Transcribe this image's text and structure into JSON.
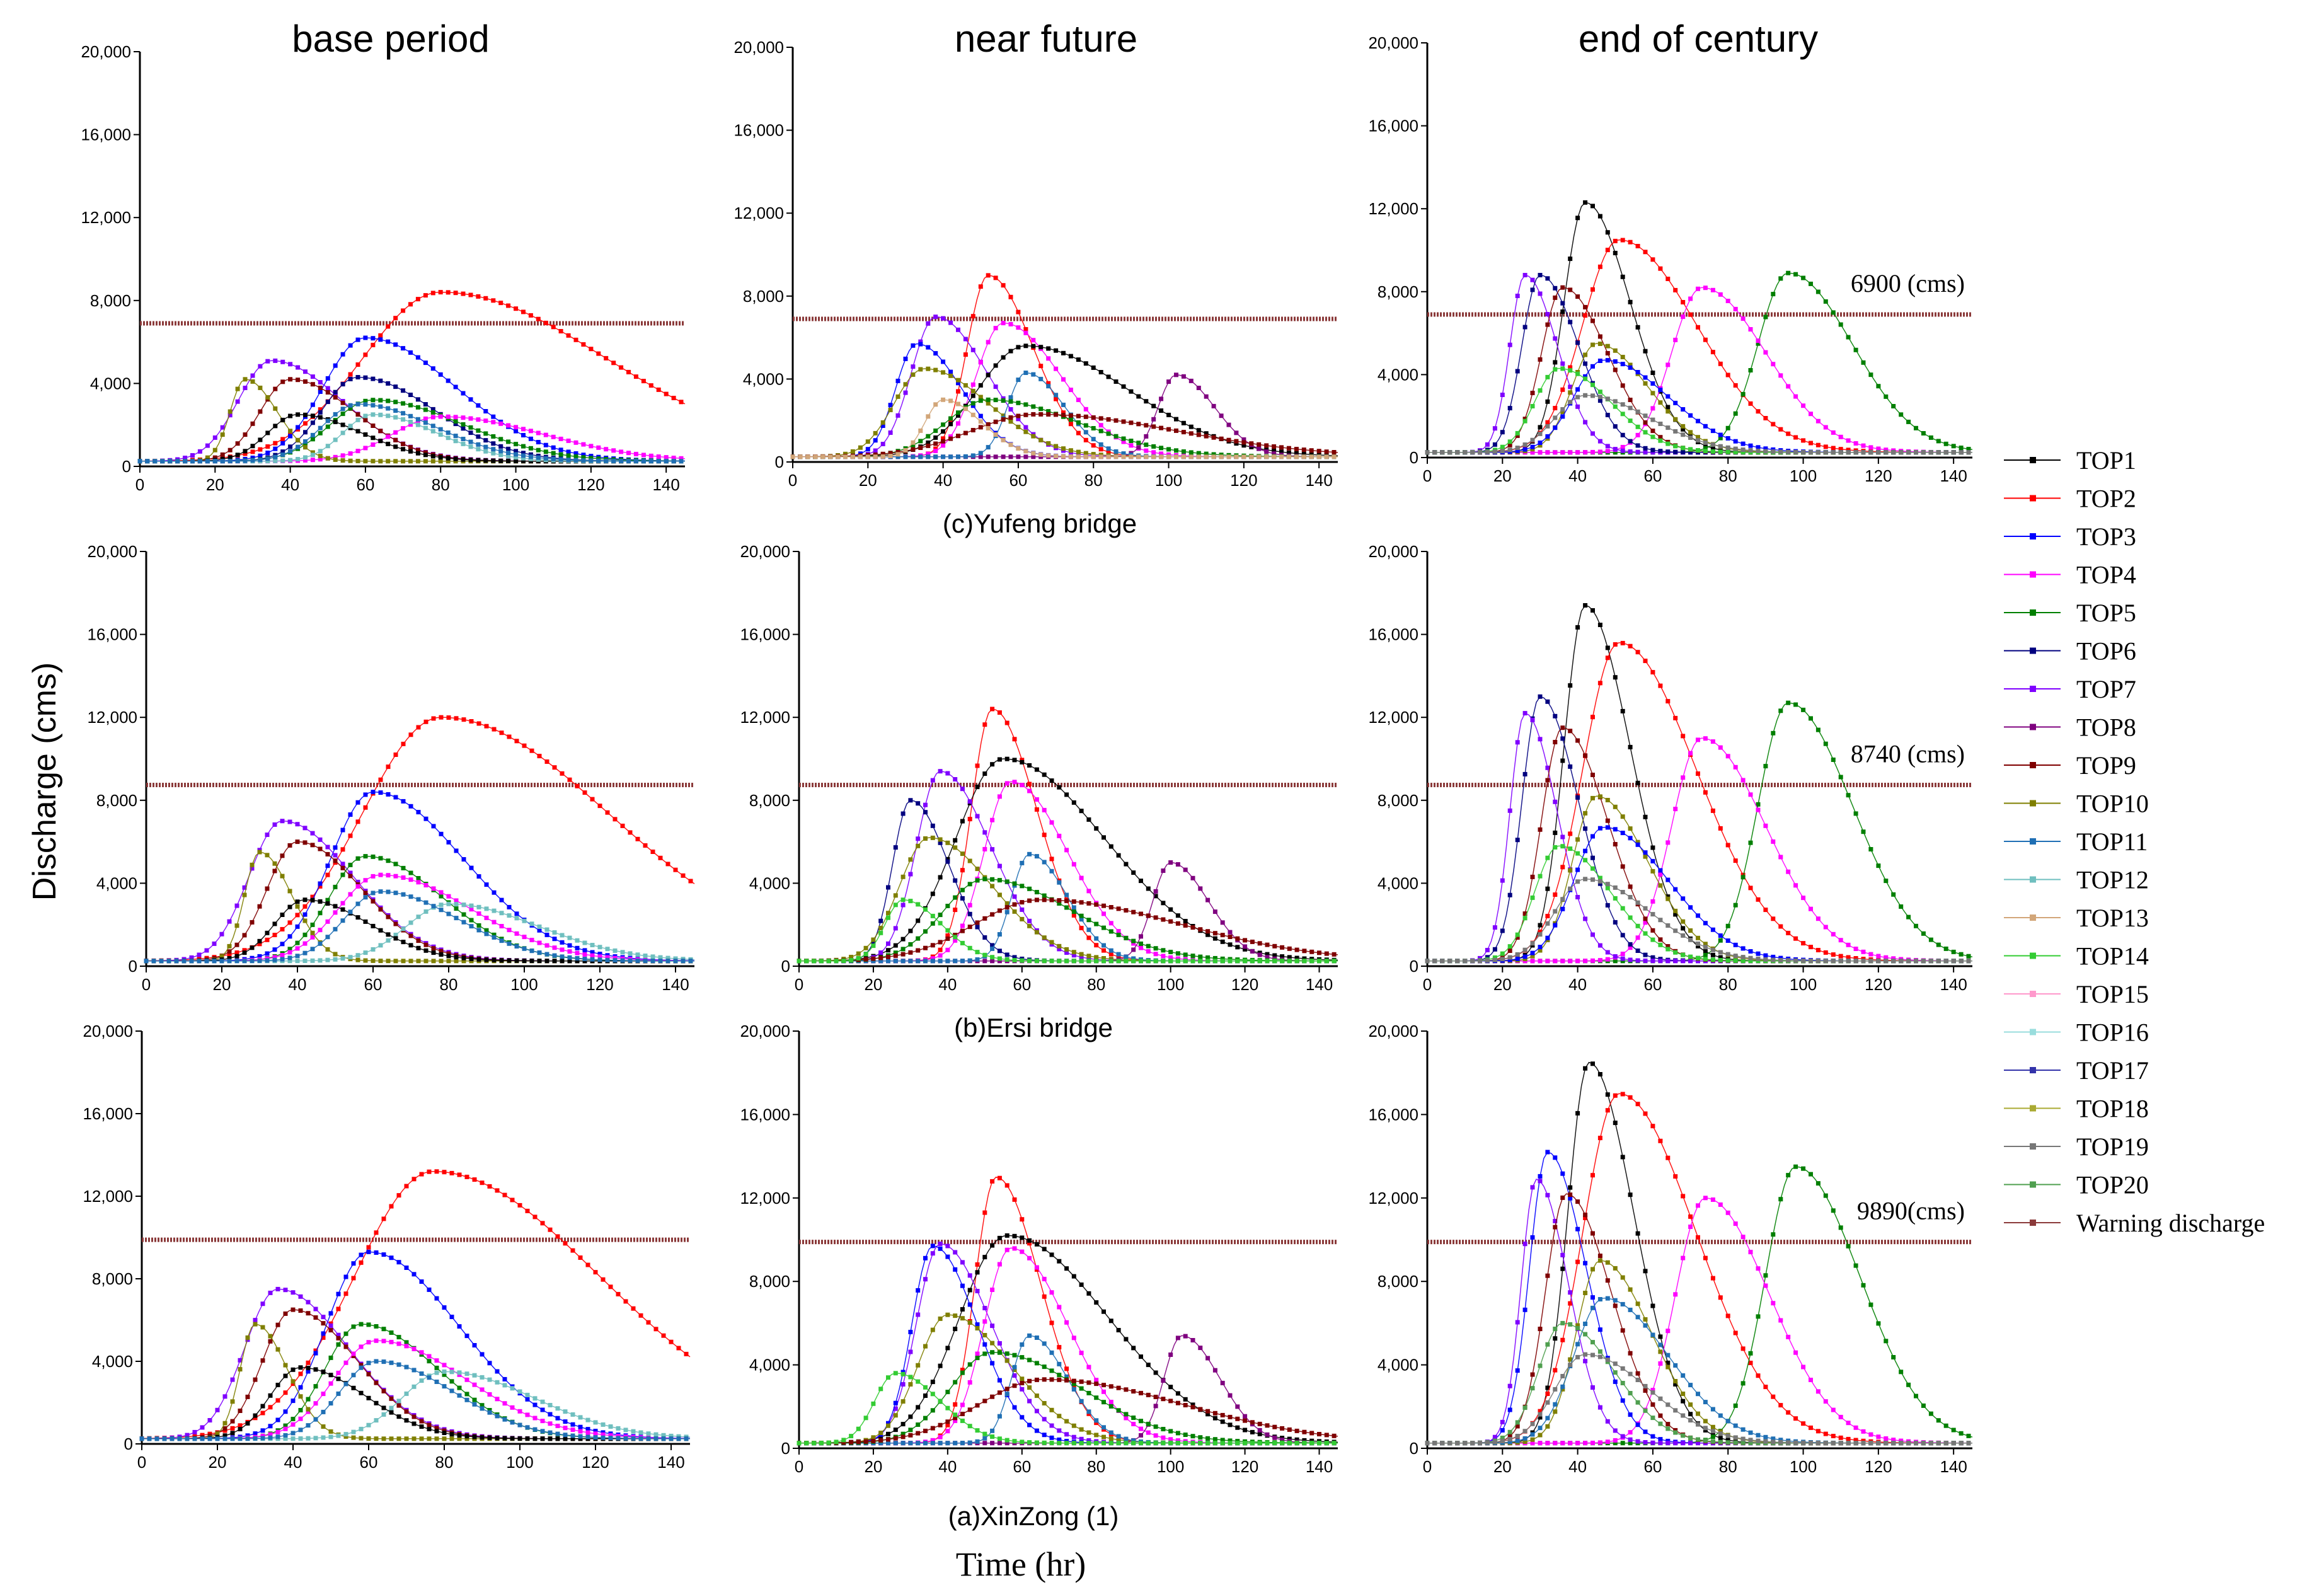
{
  "figure": {
    "column_titles": [
      "base period",
      "near future",
      "end of century"
    ],
    "row_captions": [
      "(c)Yufeng bridge",
      "(b)Ersi bridge",
      "(a)XinZong (1)"
    ],
    "ylabel": "Discharge (cms)",
    "xlabel": "Time (hr)"
  },
  "legend": {
    "items": [
      {
        "label": "TOP1",
        "color": "#000000"
      },
      {
        "label": "TOP2",
        "color": "#ff0000"
      },
      {
        "label": "TOP3",
        "color": "#0000ff"
      },
      {
        "label": "TOP4",
        "color": "#ff00ff"
      },
      {
        "label": "TOP5",
        "color": "#007f00"
      },
      {
        "label": "TOP6",
        "color": "#00007f"
      },
      {
        "label": "TOP7",
        "color": "#7f00ff"
      },
      {
        "label": "TOP8",
        "color": "#7f007f"
      },
      {
        "label": "TOP9",
        "color": "#7f0000"
      },
      {
        "label": "TOP10",
        "color": "#7f7f00"
      },
      {
        "label": "TOP11",
        "color": "#1f6fb4"
      },
      {
        "label": "TOP12",
        "color": "#6fbfbf"
      },
      {
        "label": "TOP13",
        "color": "#d2a679"
      },
      {
        "label": "TOP14",
        "color": "#33cc33"
      },
      {
        "label": "TOP15",
        "color": "#ff99cc"
      },
      {
        "label": "TOP16",
        "color": "#99dddd"
      },
      {
        "label": "TOP17",
        "color": "#3333aa"
      },
      {
        "label": "TOP18",
        "color": "#aaaa33"
      },
      {
        "label": "TOP19",
        "color": "#777777"
      },
      {
        "label": "TOP20",
        "color": "#4f9f4f"
      },
      {
        "label": "Warning discharge",
        "color": "#8b3a3a"
      }
    ]
  },
  "chart_data": [
    {
      "type": "line",
      "row": 0,
      "col": 0,
      "station": "Yufeng bridge",
      "period": "base period",
      "warning": 6900,
      "warning_label": "",
      "xlim": [
        0,
        145
      ],
      "ylim": [
        0,
        20000
      ],
      "xticks": [
        "0",
        "20",
        "40",
        "60",
        "80",
        "100",
        "120",
        "140"
      ],
      "yticks": [
        "0",
        "4,000",
        "8,000",
        "12,000",
        "16,000",
        "20,000"
      ],
      "peaks": [
        {
          "s": 1,
          "t": 80,
          "q": 8400,
          "w": 26
        },
        {
          "s": 2,
          "t": 60,
          "q": 6200,
          "w": 14
        },
        {
          "s": 6,
          "t": 35,
          "q": 5100,
          "w": 11
        },
        {
          "s": 8,
          "t": 40,
          "q": 4200,
          "w": 10
        },
        {
          "s": 5,
          "t": 58,
          "q": 4300,
          "w": 12
        },
        {
          "s": 4,
          "t": 62,
          "q": 3200,
          "w": 14
        },
        {
          "s": 3,
          "t": 80,
          "q": 2400,
          "w": 16
        },
        {
          "s": 9,
          "t": 28,
          "q": 4200,
          "w": 5
        },
        {
          "s": 0,
          "t": 42,
          "q": 2500,
          "w": 10
        },
        {
          "s": 11,
          "t": 62,
          "q": 2500,
          "w": 10
        },
        {
          "s": 10,
          "t": 58,
          "q": 3000,
          "w": 12
        }
      ]
    },
    {
      "type": "line",
      "row": 0,
      "col": 1,
      "station": "Yufeng bridge",
      "period": "near future",
      "warning": 6900,
      "warning_label": "",
      "xlim": [
        0,
        145
      ],
      "ylim": [
        0,
        20000
      ],
      "xticks": [
        "0",
        "20",
        "40",
        "60",
        "80",
        "100",
        "120",
        "140"
      ],
      "yticks": [
        "0",
        "4,000",
        "8,000",
        "12,000",
        "16,000",
        "20,000"
      ],
      "peaks": [
        {
          "s": 1,
          "t": 52,
          "q": 9000,
          "w": 7
        },
        {
          "s": 6,
          "t": 38,
          "q": 7000,
          "w": 8
        },
        {
          "s": 3,
          "t": 56,
          "q": 6700,
          "w": 9
        },
        {
          "s": 0,
          "t": 62,
          "q": 5600,
          "w": 16
        },
        {
          "s": 2,
          "t": 33,
          "q": 5700,
          "w": 7
        },
        {
          "s": 9,
          "t": 35,
          "q": 4500,
          "w": 10
        },
        {
          "s": 7,
          "t": 102,
          "q": 4200,
          "w": 6
        },
        {
          "s": 10,
          "t": 62,
          "q": 4300,
          "w": 6
        },
        {
          "s": 4,
          "t": 52,
          "q": 3000,
          "w": 14
        },
        {
          "s": 8,
          "t": 65,
          "q": 2300,
          "w": 22
        },
        {
          "s": 12,
          "t": 40,
          "q": 3000,
          "w": 6
        }
      ]
    },
    {
      "type": "line",
      "row": 0,
      "col": 2,
      "station": "Yufeng bridge",
      "period": "end of century",
      "warning": 6900,
      "warning_label": "6900 (cms)",
      "xlim": [
        0,
        145
      ],
      "ylim": [
        0,
        20000
      ],
      "xticks": [
        "0",
        "20",
        "40",
        "60",
        "80",
        "100",
        "120",
        "140"
      ],
      "yticks": [
        "0",
        "4,000",
        "8,000",
        "12,000",
        "16,000",
        "20,000"
      ],
      "peaks": [
        {
          "s": 0,
          "t": 42,
          "q": 12300,
          "w": 7
        },
        {
          "s": 1,
          "t": 51,
          "q": 10500,
          "w": 12
        },
        {
          "s": 4,
          "t": 96,
          "q": 8900,
          "w": 10
        },
        {
          "s": 3,
          "t": 73,
          "q": 8200,
          "w": 10
        },
        {
          "s": 6,
          "t": 26,
          "q": 8800,
          "w": 5
        },
        {
          "s": 5,
          "t": 30,
          "q": 8800,
          "w": 6
        },
        {
          "s": 8,
          "t": 36,
          "q": 8200,
          "w": 7
        },
        {
          "s": 9,
          "t": 45,
          "q": 5500,
          "w": 8
        },
        {
          "s": 2,
          "t": 47,
          "q": 4700,
          "w": 10
        },
        {
          "s": 13,
          "t": 35,
          "q": 4300,
          "w": 8
        },
        {
          "s": 18,
          "t": 42,
          "q": 3000,
          "w": 10
        }
      ]
    },
    {
      "type": "line",
      "row": 1,
      "col": 0,
      "station": "Ersi bridge",
      "period": "base period",
      "warning": 8740,
      "warning_label": "",
      "xlim": [
        0,
        145
      ],
      "ylim": [
        0,
        20000
      ],
      "xticks": [
        "0",
        "20",
        "40",
        "60",
        "80",
        "100",
        "120",
        "140"
      ],
      "yticks": [
        "0",
        "4,000",
        "8,000",
        "12,000",
        "16,000",
        "20,000"
      ],
      "peaks": [
        {
          "s": 1,
          "t": 78,
          "q": 12000,
          "w": 26
        },
        {
          "s": 2,
          "t": 60,
          "q": 8400,
          "w": 14
        },
        {
          "s": 6,
          "t": 36,
          "q": 7000,
          "w": 11
        },
        {
          "s": 8,
          "t": 40,
          "q": 6000,
          "w": 10
        },
        {
          "s": 4,
          "t": 58,
          "q": 5300,
          "w": 12
        },
        {
          "s": 3,
          "t": 62,
          "q": 4400,
          "w": 14
        },
        {
          "s": 9,
          "t": 30,
          "q": 5500,
          "w": 5
        },
        {
          "s": 11,
          "t": 80,
          "q": 3000,
          "w": 14
        },
        {
          "s": 0,
          "t": 42,
          "q": 3200,
          "w": 10
        },
        {
          "s": 10,
          "t": 62,
          "q": 3600,
          "w": 12
        }
      ]
    },
    {
      "type": "line",
      "row": 1,
      "col": 1,
      "station": "Ersi bridge",
      "period": "near future",
      "warning": 8740,
      "warning_label": "",
      "xlim": [
        0,
        145
      ],
      "ylim": [
        0,
        20000
      ],
      "xticks": [
        "0",
        "20",
        "40",
        "60",
        "80",
        "100",
        "120",
        "140"
      ],
      "yticks": [
        "0",
        "4,000",
        "8,000",
        "12,000",
        "16,000",
        "20,000"
      ],
      "peaks": [
        {
          "s": 1,
          "t": 52,
          "q": 12400,
          "w": 7
        },
        {
          "s": 0,
          "t": 55,
          "q": 10000,
          "w": 16
        },
        {
          "s": 6,
          "t": 38,
          "q": 9400,
          "w": 8
        },
        {
          "s": 3,
          "t": 57,
          "q": 8900,
          "w": 9
        },
        {
          "s": 5,
          "t": 30,
          "q": 8000,
          "w": 6
        },
        {
          "s": 9,
          "t": 35,
          "q": 6200,
          "w": 10
        },
        {
          "s": 7,
          "t": 100,
          "q": 5000,
          "w": 6
        },
        {
          "s": 10,
          "t": 62,
          "q": 5400,
          "w": 6
        },
        {
          "s": 4,
          "t": 50,
          "q": 4200,
          "w": 14
        },
        {
          "s": 8,
          "t": 65,
          "q": 3200,
          "w": 22
        },
        {
          "s": 13,
          "t": 28,
          "q": 3200,
          "w": 6
        }
      ]
    },
    {
      "type": "line",
      "row": 1,
      "col": 2,
      "station": "Ersi bridge",
      "period": "end of century",
      "warning": 8740,
      "warning_label": "8740 (cms)",
      "xlim": [
        0,
        145
      ],
      "ylim": [
        0,
        20000
      ],
      "xticks": [
        "0",
        "20",
        "40",
        "60",
        "80",
        "100",
        "120",
        "140"
      ],
      "yticks": [
        "0",
        "4,000",
        "8,000",
        "12,000",
        "16,000",
        "20,000"
      ],
      "peaks": [
        {
          "s": 0,
          "t": 42,
          "q": 17400,
          "w": 7
        },
        {
          "s": 1,
          "t": 51,
          "q": 15600,
          "w": 12
        },
        {
          "s": 4,
          "t": 96,
          "q": 12700,
          "w": 10
        },
        {
          "s": 3,
          "t": 73,
          "q": 11000,
          "w": 10
        },
        {
          "s": 5,
          "t": 30,
          "q": 13000,
          "w": 6
        },
        {
          "s": 6,
          "t": 26,
          "q": 12200,
          "w": 5
        },
        {
          "s": 8,
          "t": 36,
          "q": 11500,
          "w": 7
        },
        {
          "s": 9,
          "t": 45,
          "q": 8200,
          "w": 8
        },
        {
          "s": 2,
          "t": 47,
          "q": 6700,
          "w": 10
        },
        {
          "s": 13,
          "t": 35,
          "q": 5800,
          "w": 8
        },
        {
          "s": 18,
          "t": 42,
          "q": 4200,
          "w": 10
        }
      ]
    },
    {
      "type": "line",
      "row": 2,
      "col": 0,
      "station": "XinZong (1)",
      "period": "base period",
      "warning": 9890,
      "warning_label": "",
      "xlim": [
        0,
        145
      ],
      "ylim": [
        0,
        20000
      ],
      "xticks": [
        "0",
        "20",
        "40",
        "60",
        "80",
        "100",
        "120",
        "140"
      ],
      "yticks": [
        "0",
        "4,000",
        "8,000",
        "12,000",
        "16,000",
        "20,000"
      ],
      "peaks": [
        {
          "s": 1,
          "t": 77,
          "q": 13200,
          "w": 26
        },
        {
          "s": 2,
          "t": 60,
          "q": 9300,
          "w": 14
        },
        {
          "s": 6,
          "t": 36,
          "q": 7500,
          "w": 11
        },
        {
          "s": 8,
          "t": 40,
          "q": 6500,
          "w": 10
        },
        {
          "s": 4,
          "t": 58,
          "q": 5800,
          "w": 12
        },
        {
          "s": 3,
          "t": 62,
          "q": 5000,
          "w": 14
        },
        {
          "s": 9,
          "t": 30,
          "q": 5800,
          "w": 5
        },
        {
          "s": 11,
          "t": 80,
          "q": 3500,
          "w": 14
        },
        {
          "s": 0,
          "t": 42,
          "q": 3700,
          "w": 10
        },
        {
          "s": 10,
          "t": 62,
          "q": 4000,
          "w": 12
        }
      ]
    },
    {
      "type": "line",
      "row": 2,
      "col": 1,
      "station": "XinZong (1)",
      "period": "near future",
      "warning": 9890,
      "warning_label": "",
      "xlim": [
        0,
        145
      ],
      "ylim": [
        0,
        20000
      ],
      "xticks": [
        "0",
        "20",
        "40",
        "60",
        "80",
        "100",
        "120",
        "140"
      ],
      "yticks": [
        "0",
        "4,000",
        "8,000",
        "12,000",
        "16,000",
        "20,000"
      ],
      "peaks": [
        {
          "s": 1,
          "t": 53,
          "q": 13000,
          "w": 7
        },
        {
          "s": 0,
          "t": 56,
          "q": 10200,
          "w": 16
        },
        {
          "s": 6,
          "t": 38,
          "q": 9800,
          "w": 8
        },
        {
          "s": 3,
          "t": 57,
          "q": 9600,
          "w": 9
        },
        {
          "s": 2,
          "t": 36,
          "q": 9700,
          "w": 7
        },
        {
          "s": 9,
          "t": 40,
          "q": 6400,
          "w": 10
        },
        {
          "s": 7,
          "t": 103,
          "q": 5400,
          "w": 6
        },
        {
          "s": 10,
          "t": 62,
          "q": 5400,
          "w": 6
        },
        {
          "s": 4,
          "t": 52,
          "q": 4600,
          "w": 14
        },
        {
          "s": 8,
          "t": 66,
          "q": 3300,
          "w": 22
        },
        {
          "s": 13,
          "t": 26,
          "q": 3600,
          "w": 7
        }
      ]
    },
    {
      "type": "line",
      "row": 2,
      "col": 2,
      "station": "XinZong (1)",
      "period": "end of century",
      "warning": 9890,
      "warning_label": "9890(cms)",
      "xlim": [
        0,
        145
      ],
      "ylim": [
        0,
        20000
      ],
      "xticks": [
        "0",
        "20",
        "40",
        "60",
        "80",
        "100",
        "120",
        "140"
      ],
      "yticks": [
        "0",
        "4,000",
        "8,000",
        "12,000",
        "16,000",
        "20,000"
      ],
      "peaks": [
        {
          "s": 0,
          "t": 43,
          "q": 18500,
          "w": 7
        },
        {
          "s": 1,
          "t": 51,
          "q": 17000,
          "w": 12
        },
        {
          "s": 4,
          "t": 98,
          "q": 13500,
          "w": 10
        },
        {
          "s": 3,
          "t": 74,
          "q": 12000,
          "w": 10
        },
        {
          "s": 2,
          "t": 32,
          "q": 14200,
          "w": 6
        },
        {
          "s": 6,
          "t": 29,
          "q": 12900,
          "w": 5
        },
        {
          "s": 8,
          "t": 37,
          "q": 12200,
          "w": 7
        },
        {
          "s": 9,
          "t": 46,
          "q": 9000,
          "w": 8
        },
        {
          "s": 10,
          "t": 47,
          "q": 7200,
          "w": 10
        },
        {
          "s": 19,
          "t": 36,
          "q": 6000,
          "w": 8
        },
        {
          "s": 18,
          "t": 42,
          "q": 4500,
          "w": 10
        }
      ]
    }
  ]
}
